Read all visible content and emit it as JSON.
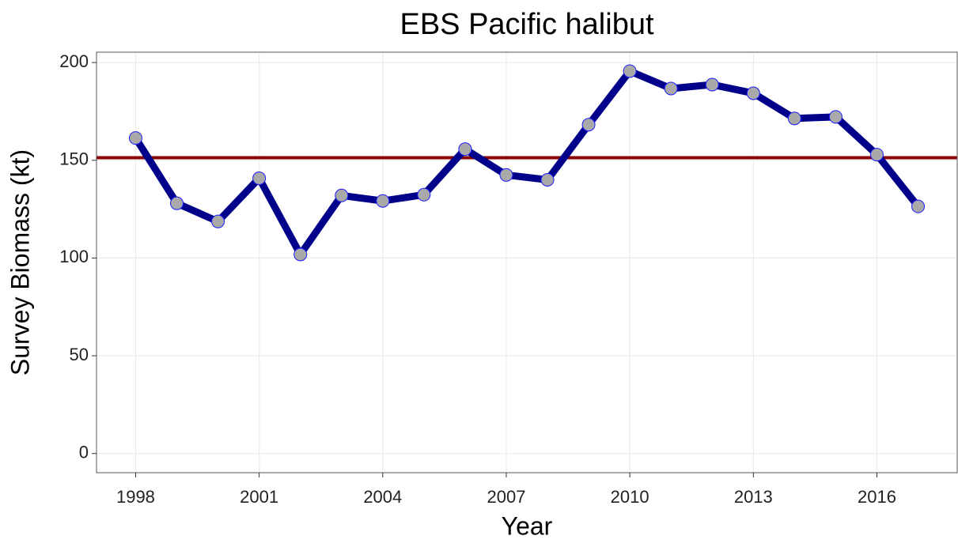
{
  "chart_data": {
    "type": "line",
    "title": "EBS Pacific halibut",
    "x_label": "Year",
    "y_label": "Survey Biomass (kt)",
    "x": [
      1998,
      1999,
      2000,
      2001,
      2002,
      2003,
      2004,
      2005,
      2006,
      2007,
      2008,
      2009,
      2010,
      2011,
      2012,
      2013,
      2014,
      2015,
      2016,
      2017
    ],
    "series": [
      {
        "color": "#00008b",
        "marker_color": "#a9a9a9",
        "values": [
          161.4,
          128,
          118.7,
          140.8,
          101.8,
          132,
          129.2,
          132.4,
          155.7,
          142.5,
          140,
          168.2,
          195.6,
          186.7,
          188.7,
          184.3,
          171.4,
          172.2,
          152.9,
          126.4
        ]
      }
    ],
    "hline": 151.3,
    "hline_color": "#8b0000",
    "xlim": [
      1997.05,
      2017.95
    ],
    "xticks": [
      1998,
      2001,
      2004,
      2007,
      2010,
      2013,
      2016
    ],
    "ylim": [
      -9.8,
      205.3
    ],
    "yticks": [
      0,
      50,
      100,
      150,
      200
    ],
    "grid": true
  }
}
